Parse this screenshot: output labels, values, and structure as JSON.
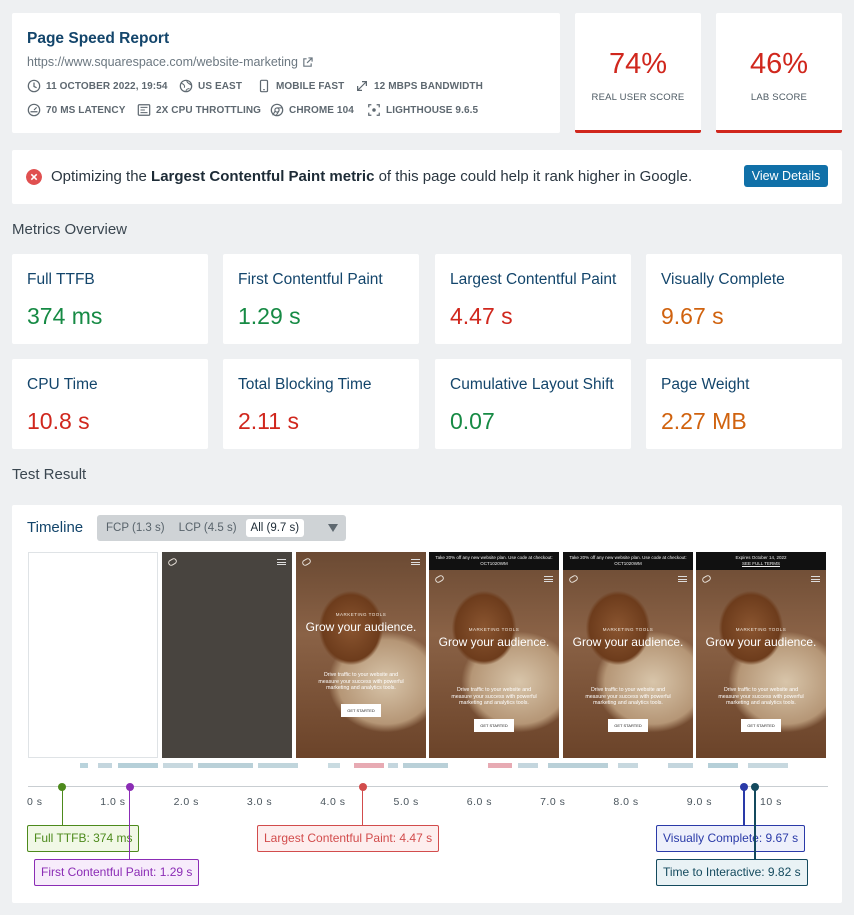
{
  "report": {
    "title": "Page Speed Report",
    "url": "https://www.squarespace.com/website-marketing",
    "meta": [
      {
        "icon": "clock-icon",
        "text": "11 OCTOBER 2022, 19:54"
      },
      {
        "icon": "globe-icon",
        "text": "US EAST"
      },
      {
        "icon": "mobile-icon",
        "text": "MOBILE FAST"
      },
      {
        "icon": "bandwidth-icon",
        "text": "12 MBPS BANDWIDTH"
      },
      {
        "icon": "latency-icon",
        "text": "70 MS LATENCY"
      },
      {
        "icon": "cpu-icon",
        "text": "2X CPU THROTTLING"
      },
      {
        "icon": "chrome-icon",
        "text": "CHROME 104"
      },
      {
        "icon": "lighthouse-icon",
        "text": "LIGHTHOUSE 9.6.5"
      }
    ]
  },
  "scores": {
    "real_user": {
      "value": "74%",
      "label": "REAL USER SCORE",
      "color": "#d0271d"
    },
    "lab": {
      "value": "46%",
      "label": "LAB SCORE",
      "color": "#d0271d"
    }
  },
  "alert": {
    "prefix": "Optimizing the ",
    "highlight": "Largest Contentful Paint metric",
    "suffix": " of this page could help it rank higher in Google.",
    "button": "View Details"
  },
  "metrics_title": "Metrics Overview",
  "metrics": [
    {
      "label": "Full TTFB",
      "value": "374 ms",
      "status": "good"
    },
    {
      "label": "First Contentful Paint",
      "value": "1.29 s",
      "status": "good"
    },
    {
      "label": "Largest Contentful Paint",
      "value": "4.47 s",
      "status": "poor"
    },
    {
      "label": "Visually Complete",
      "value": "9.67 s",
      "status": "average"
    },
    {
      "label": "CPU Time",
      "value": "10.8 s",
      "status": "poor"
    },
    {
      "label": "Total Blocking Time",
      "value": "2.11 s",
      "status": "poor"
    },
    {
      "label": "Cumulative Layout Shift",
      "value": "0.07",
      "status": "good"
    },
    {
      "label": "Page Weight",
      "value": "2.27 MB",
      "status": "average"
    }
  ],
  "test_result_title": "Test Result",
  "timeline": {
    "title": "Timeline",
    "options": [
      "FCP (1.3 s)",
      "LCP (4.5 s)",
      "All (9.7 s)"
    ],
    "selected": "All (9.7 s)",
    "frames": {
      "promo_banner": "Take 20% off any new website plan. Use code at checkout: OCT1020WM",
      "expires_banner": "Expires October 14, 2022",
      "expires_link": "SEE FULL TERMS",
      "kicker": "MARKETING TOOLS",
      "headline": "Grow your audience.",
      "body": "Drive traffic to your website and measure your success with powerful marketing and analytics tools.",
      "cta": "GET STARTED"
    },
    "ticks": [
      "0 s",
      "1.0 s",
      "2.0 s",
      "3.0 s",
      "4.0 s",
      "5.0 s",
      "6.0 s",
      "7.0 s",
      "8.0 s",
      "9.0 s",
      "10 s"
    ],
    "markers": [
      {
        "label": "Full TTFB: 374 ms",
        "time": 0.374,
        "color": "#4d8a1c",
        "bg": "#f1f8e6"
      },
      {
        "label": "First Contentful Paint: 1.29 s",
        "time": 1.29,
        "color": "#8b2cb5",
        "bg": "#f7ecfb"
      },
      {
        "label": "Largest Contentful Paint: 4.47 s",
        "time": 4.47,
        "color": "#d24c4c",
        "bg": "#fdeeee"
      },
      {
        "label": "Visually Complete: 9.67 s",
        "time": 9.67,
        "color": "#2a3aa8",
        "bg": "#eef0fb"
      },
      {
        "label": "Time to Interactive: 9.82 s",
        "time": 9.82,
        "color": "#144a5e",
        "bg": "#e9f2f5"
      }
    ]
  }
}
